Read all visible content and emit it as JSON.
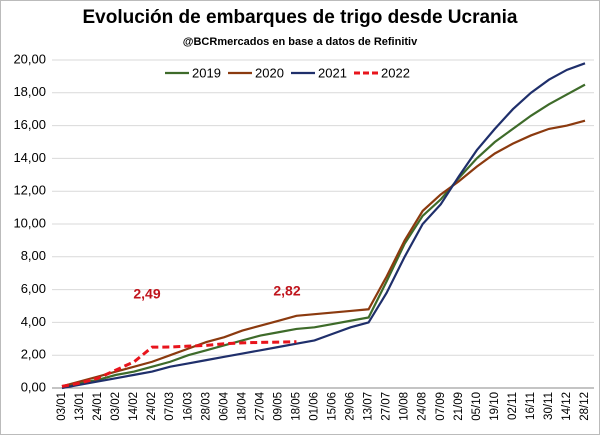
{
  "chart_data": {
    "type": "line",
    "title": "Evolución de embarques de trigo desde Ucrania",
    "subtitle": "@BCRmercados en base a datos de Refinitiv",
    "categories": [
      "03/01",
      "13/01",
      "24/01",
      "03/02",
      "14/02",
      "24/02",
      "07/03",
      "16/03",
      "28/03",
      "06/04",
      "18/04",
      "27/04",
      "09/05",
      "18/05",
      "01/06",
      "15/06",
      "29/06",
      "13/07",
      "27/07",
      "10/08",
      "24/08",
      "07/09",
      "21/09",
      "05/10",
      "19/10",
      "02/11",
      "16/11",
      "30/11",
      "14/12",
      "28/12"
    ],
    "series": [
      {
        "name": "2019",
        "color": "#3e6b2a",
        "dash": false,
        "values": [
          0.1,
          0.3,
          0.5,
          0.8,
          1.0,
          1.3,
          1.6,
          2.0,
          2.3,
          2.6,
          2.9,
          3.2,
          3.4,
          3.6,
          3.7,
          3.9,
          4.1,
          4.3,
          6.5,
          8.8,
          10.5,
          11.5,
          12.8,
          14.0,
          15.0,
          15.8,
          16.6,
          17.3,
          17.9,
          18.5
        ]
      },
      {
        "name": "2020",
        "color": "#8b3a0f",
        "dash": false,
        "values": [
          0.1,
          0.4,
          0.7,
          1.0,
          1.3,
          1.6,
          2.0,
          2.4,
          2.8,
          3.1,
          3.5,
          3.8,
          4.1,
          4.4,
          4.5,
          4.6,
          4.7,
          4.8,
          6.8,
          9.0,
          10.8,
          11.8,
          12.6,
          13.5,
          14.3,
          14.9,
          15.4,
          15.8,
          16.0,
          16.3
        ]
      },
      {
        "name": "2021",
        "color": "#1f2f6b",
        "dash": false,
        "values": [
          0.0,
          0.2,
          0.4,
          0.6,
          0.8,
          1.0,
          1.3,
          1.5,
          1.7,
          1.9,
          2.1,
          2.3,
          2.5,
          2.7,
          2.9,
          3.3,
          3.7,
          4.0,
          5.8,
          8.0,
          10.0,
          11.2,
          12.9,
          14.5,
          15.8,
          17.0,
          18.0,
          18.8,
          19.4,
          19.8
        ]
      },
      {
        "name": "2022",
        "color": "#e8141c",
        "dash": true,
        "values": [
          0.1,
          0.3,
          0.6,
          1.1,
          1.6,
          2.49,
          2.5,
          2.55,
          2.6,
          2.7,
          2.75,
          2.78,
          2.8,
          2.82,
          null,
          null,
          null,
          null,
          null,
          null,
          null,
          null,
          null,
          null,
          null,
          null,
          null,
          null,
          null,
          null
        ]
      }
    ],
    "annotations": [
      "2,49",
      "2,82"
    ],
    "ylim": [
      0,
      20
    ],
    "yticks": [
      {
        "value": 0,
        "label": "0,00"
      },
      {
        "value": 2,
        "label": "2,00"
      },
      {
        "value": 4,
        "label": "4,00"
      },
      {
        "value": 6,
        "label": "6,00"
      },
      {
        "value": 8,
        "label": "8,00"
      },
      {
        "value": 10,
        "label": "10,00"
      },
      {
        "value": 12,
        "label": "12,00"
      },
      {
        "value": 14,
        "label": "14,00"
      },
      {
        "value": 16,
        "label": "16,00"
      },
      {
        "value": 18,
        "label": "18,00"
      },
      {
        "value": 20,
        "label": "20,00"
      }
    ],
    "grid": true,
    "legend": "top"
  }
}
